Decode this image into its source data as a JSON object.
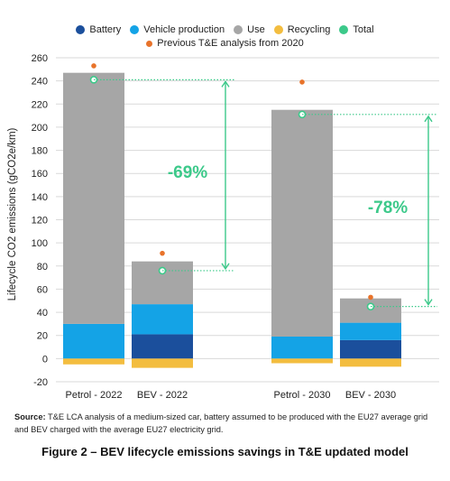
{
  "legend": {
    "items": [
      {
        "label": "Battery",
        "color": "#1b4f9c"
      },
      {
        "label": "Vehicle production",
        "color": "#14a3e6"
      },
      {
        "label": "Use",
        "color": "#a6a6a6"
      },
      {
        "label": "Recycling",
        "color": "#f3bd3f"
      },
      {
        "label": "Total",
        "color": "#3cc98a"
      }
    ],
    "previous": {
      "label": "Previous T&E analysis from 2020",
      "color": "#e8732a"
    }
  },
  "colors": {
    "battery": "#1b4f9c",
    "vehicle_production": "#14a3e6",
    "use": "#a6a6a6",
    "recycling": "#f3bd3f",
    "total": "#3cc98a",
    "previous": "#e8732a",
    "reduction_text": "#3cc98a",
    "grid": "#d9d9d9"
  },
  "chart_data": {
    "type": "bar",
    "stacked": true,
    "ylabel": "Lifecycle CO2 emissions (gCO2e/km)",
    "ylim": [
      -20,
      260
    ],
    "yticks": [
      -20,
      0,
      20,
      40,
      60,
      80,
      100,
      120,
      140,
      160,
      180,
      200,
      220,
      240,
      260
    ],
    "grid": true,
    "legend_position": "top",
    "categories": [
      "Petrol - 2022",
      "BEV - 2022",
      "Petrol - 2030",
      "BEV - 2030"
    ],
    "series": [
      {
        "name": "Battery",
        "values": [
          0,
          21,
          0,
          16
        ]
      },
      {
        "name": "Vehicle production",
        "values": [
          30,
          26,
          19,
          15
        ]
      },
      {
        "name": "Use",
        "values": [
          217,
          37,
          196,
          21
        ]
      },
      {
        "name": "Recycling",
        "values": [
          -5,
          -8,
          -4,
          -7
        ]
      }
    ],
    "total": {
      "name": "Total",
      "values": [
        241,
        76,
        211,
        45
      ]
    },
    "previous_analysis": {
      "name": "Previous T&E analysis from 2020",
      "values": [
        253,
        91,
        239,
        53
      ]
    },
    "annotations": [
      {
        "text": "-69%",
        "from": 0,
        "to": 1
      },
      {
        "text": "-78%",
        "from": 2,
        "to": 3
      }
    ]
  },
  "source": {
    "label": "Source:",
    "text": "T&E LCA analysis of a medium-sized car, battery assumed to be produced with the EU27 average grid and BEV charged with the average EU27 electricity grid."
  },
  "caption": "Figure 2 – BEV lifecycle emissions savings in T&E updated model"
}
